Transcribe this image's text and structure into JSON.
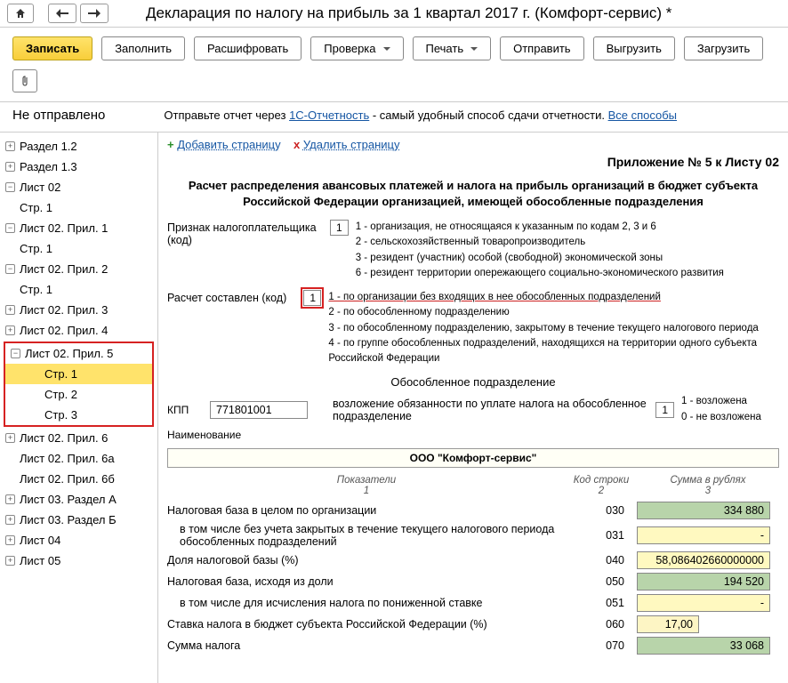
{
  "title": "Декларация по налогу на прибыль за 1 квартал 2017 г. (Комфорт-сервис) *",
  "toolbar": {
    "write": "Записать",
    "fill": "Заполнить",
    "decode": "Расшифровать",
    "check": "Проверка",
    "print": "Печать",
    "send": "Отправить",
    "export": "Выгрузить",
    "import": "Загрузить"
  },
  "status": {
    "not_sent": "Не отправлено",
    "hint_prefix": "Отправьте отчет через ",
    "hint_link": "1С-Отчетность",
    "hint_suffix": " - самый удобный способ сдачи отчетности. ",
    "all_methods": "Все способы"
  },
  "tree": {
    "items": [
      {
        "exp": "+",
        "lv": 0,
        "label": "Раздел 1.2"
      },
      {
        "exp": "+",
        "lv": 0,
        "label": "Раздел 1.3"
      },
      {
        "exp": "-",
        "lv": 0,
        "label": "Лист 02"
      },
      {
        "exp": "",
        "lv": 1,
        "label": "Стр. 1"
      },
      {
        "exp": "-",
        "lv": 0,
        "label": "Лист 02. Прил. 1"
      },
      {
        "exp": "",
        "lv": 1,
        "label": "Стр. 1"
      },
      {
        "exp": "-",
        "lv": 0,
        "label": "Лист 02. Прил. 2"
      },
      {
        "exp": "",
        "lv": 1,
        "label": "Стр. 1"
      },
      {
        "exp": "+",
        "lv": 0,
        "label": "Лист 02. Прил. 3"
      },
      {
        "exp": "+",
        "lv": 0,
        "label": "Лист 02. Прил. 4"
      }
    ],
    "hl_items": [
      {
        "exp": "-",
        "lv": 0,
        "label": "Лист 02. Прил. 5"
      },
      {
        "exp": "",
        "lv": 2,
        "label": "Стр. 1",
        "sel": true
      },
      {
        "exp": "",
        "lv": 2,
        "label": "Стр. 2"
      },
      {
        "exp": "",
        "lv": 2,
        "label": "Стр. 3"
      }
    ],
    "items2": [
      {
        "exp": "+",
        "lv": 0,
        "label": "Лист 02. Прил. 6"
      },
      {
        "exp": "",
        "lv": 0,
        "label": "Лист 02. Прил. 6а",
        "spacer": true
      },
      {
        "exp": "",
        "lv": 0,
        "label": "Лист 02. Прил. 6б",
        "spacer": true
      },
      {
        "exp": "+",
        "lv": 0,
        "label": "Лист 03. Раздел А"
      },
      {
        "exp": "+",
        "lv": 0,
        "label": "Лист 03. Раздел Б"
      },
      {
        "exp": "+",
        "lv": 0,
        "label": "Лист 04"
      },
      {
        "exp": "+",
        "lv": 0,
        "label": "Лист 05"
      }
    ]
  },
  "page": {
    "add_page": "Добавить страницу",
    "del_page": "Удалить страницу",
    "appendix": "Приложение № 5 к Листу 02",
    "section_title": "Расчет распределения авансовых платежей и налога на прибыль организаций в бюджет субъекта Российской Федерации организацией, имеющей обособленные подразделения",
    "taxpayer_label": "Признак налогоплательщика (код)",
    "taxpayer_code": "1",
    "taxpayer_defs": [
      "1 - организация, не относящаяся к указанным по кодам 2, 3 и 6",
      "2 - сельскохозяйственный товаропроизводитель",
      "3 - резидент (участник) особой (свободной) экономической зоны",
      "6 - резидент территории опережающего социально-экономического развития"
    ],
    "calc_label": "Расчет составлен (код)",
    "calc_code": "1",
    "calc_defs": [
      "1 - по организации без входящих в нее обособленных подразделений",
      "2 - по обособленному подразделению",
      "3 - по обособленному подразделению, закрытому в течение текущего налогового периода",
      "4 - по группе обособленных подразделений, находящихся на территории одного субъекта Российской Федерации"
    ],
    "subdiv_head": "Обособленное подразделение",
    "kpp_label": "КПП",
    "kpp_value": "771801001",
    "resp_text": "возложение обязанности по уплате налога на обособленное подразделение",
    "resp_code": "1",
    "resp_defs": "1 - возложена\n0 - не возложена",
    "name_label": "Наименование",
    "org_name": "ООО \"Комфорт-сервис\"",
    "th1": "Показатели",
    "th1s": "1",
    "th2": "Код строки",
    "th2s": "2",
    "th3": "Сумма в рублях",
    "th3s": "3",
    "rows": [
      {
        "label": "Налоговая база в целом по организации",
        "code": "030",
        "val": "334 880",
        "cls": "green"
      },
      {
        "label": "в том числе без учета закрытых в течение текущего налогового периода обособленных подразделений",
        "code": "031",
        "val": "-",
        "cls": "yellow",
        "indent": true
      },
      {
        "label": "Доля налоговой базы (%)",
        "code": "040",
        "val": "58,086402660000000",
        "cls": "yellow"
      },
      {
        "label": "Налоговая база, исходя из доли",
        "code": "050",
        "val": "194 520",
        "cls": "green"
      },
      {
        "label": "в том числе для исчисления налога по пониженной ставке",
        "code": "051",
        "val": "-",
        "cls": "yellow",
        "indent": true
      },
      {
        "label": "Ставка налога в бюджет субъекта Российской Федерации (%)",
        "code": "060",
        "val": "17,00",
        "cls": "short yellow2"
      },
      {
        "label": "Сумма налога",
        "code": "070",
        "val": "33 068",
        "cls": "green"
      }
    ]
  }
}
